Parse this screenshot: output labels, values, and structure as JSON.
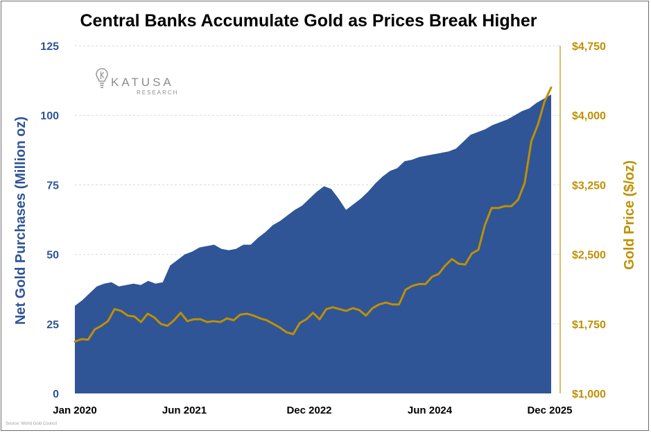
{
  "chart_data": {
    "type": "area+line",
    "title": "Central Banks Accumulate Gold as Prices Break Higher",
    "ylabel_left": "Net Gold Purchases (Million oz)",
    "ylabel_right": "Gold Price ($/oz)",
    "ylim_left": [
      0,
      125
    ],
    "ylim_right": [
      1000,
      4750
    ],
    "yticks_left": [
      "0",
      "25",
      "50",
      "75",
      "100",
      "125"
    ],
    "yticks_right": [
      "$1,000",
      "$1,750",
      "$2,500",
      "$3,250",
      "$4,000",
      "$4,750"
    ],
    "xticks": [
      "Jan 2020",
      "Jun 2021",
      "Dec 2022",
      "Jun 2024",
      "Dec 2025"
    ],
    "grid": true,
    "series": [
      {
        "name": "Net Gold Purchases (Million oz)",
        "type": "area",
        "axis": "left",
        "color": "#2f5597",
        "values": [
          31.5,
          33.5,
          36,
          38.5,
          39.5,
          40,
          38.5,
          39,
          39.5,
          39,
          40.5,
          39.5,
          40,
          46,
          48,
          50,
          51,
          52.5,
          53,
          53.5,
          52,
          51.5,
          52,
          53.5,
          53.5,
          56,
          58,
          60.5,
          62,
          64,
          66,
          67.5,
          70,
          72.5,
          74.5,
          73.5,
          70,
          66,
          68,
          70,
          72.5,
          75.5,
          78,
          80,
          81,
          83.5,
          84,
          85,
          85.5,
          86,
          86.5,
          87,
          88,
          90.5,
          93,
          94,
          95,
          96.5,
          97.5,
          98.5,
          100,
          101.5,
          102.5,
          104.5,
          106,
          107.5
        ]
      },
      {
        "name": "Gold Price ($/oz)",
        "type": "line",
        "axis": "right",
        "color": "#bf9000",
        "values": [
          1560,
          1585,
          1580,
          1690,
          1730,
          1780,
          1910,
          1890,
          1840,
          1830,
          1770,
          1860,
          1820,
          1750,
          1730,
          1790,
          1870,
          1780,
          1800,
          1800,
          1770,
          1780,
          1770,
          1810,
          1790,
          1850,
          1860,
          1840,
          1810,
          1790,
          1750,
          1710,
          1660,
          1640,
          1760,
          1800,
          1870,
          1800,
          1910,
          1930,
          1910,
          1890,
          1920,
          1900,
          1840,
          1920,
          1960,
          1980,
          1960,
          1960,
          2120,
          2160,
          2180,
          2180,
          2260,
          2290,
          2380,
          2450,
          2400,
          2390,
          2510,
          2550,
          2820,
          3000,
          3000,
          3020,
          3020,
          3090,
          3270,
          3720,
          3900,
          4150,
          4300
        ]
      }
    ],
    "source": "Source: World Gold Council",
    "logo": {
      "name": "KATUSA",
      "sub": "RESEARCH"
    }
  }
}
